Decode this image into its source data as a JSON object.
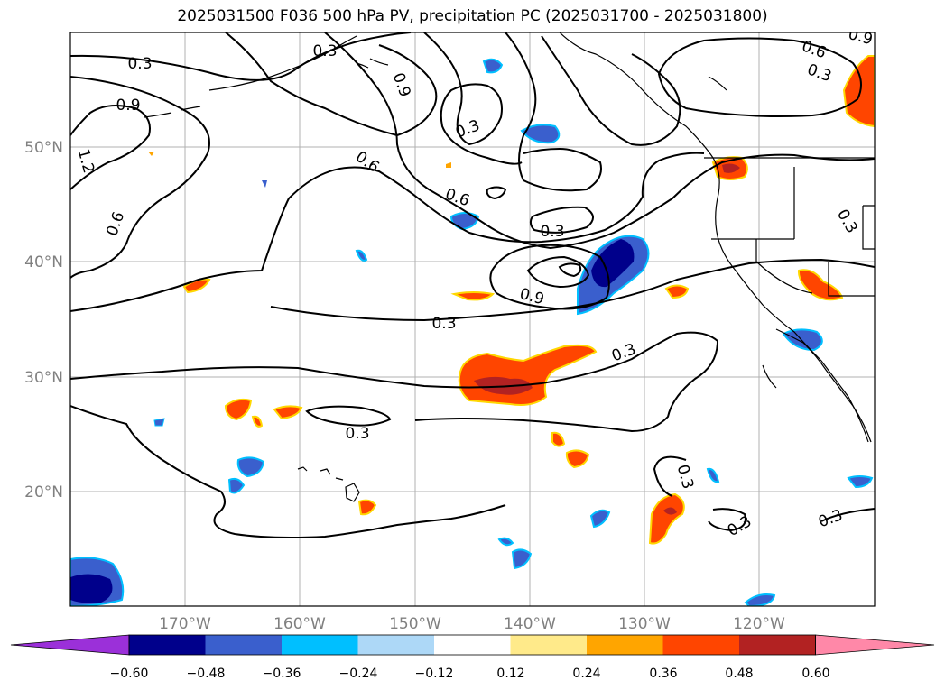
{
  "title": "2025031500 F036 500 hPa PV, precipitation PC (2025031700 - 2025031800)",
  "map": {
    "lat_labels": [
      "50°N",
      "40°N",
      "30°N",
      "20°N"
    ],
    "lon_labels": [
      "170°W",
      "160°W",
      "150°W",
      "140°W",
      "130°W",
      "120°W"
    ],
    "contour_labels": [
      "0.3",
      "0.3",
      "0.9",
      "0.9",
      "1.2",
      "0.6",
      "0.6",
      "0.3",
      "0.6",
      "0.3",
      "0.9",
      "0.3",
      "0.3",
      "0.3",
      "0.3",
      "0.3",
      "0.6",
      "0.3",
      "0.9",
      "0.3",
      "0.3",
      "0.3"
    ]
  },
  "colorbar": {
    "ticks": [
      "−0.60",
      "−0.48",
      "−0.36",
      "−0.24",
      "−0.12",
      "0.12",
      "0.24",
      "0.36",
      "0.48",
      "0.60"
    ],
    "colors": [
      "#9b30d9",
      "#00008b",
      "#3a5fcd",
      "#00bfff",
      "#add8f7",
      "#ffffff",
      "#ffea8a",
      "#ffa500",
      "#ff4500",
      "#b22222",
      "#ff88a8"
    ]
  }
}
